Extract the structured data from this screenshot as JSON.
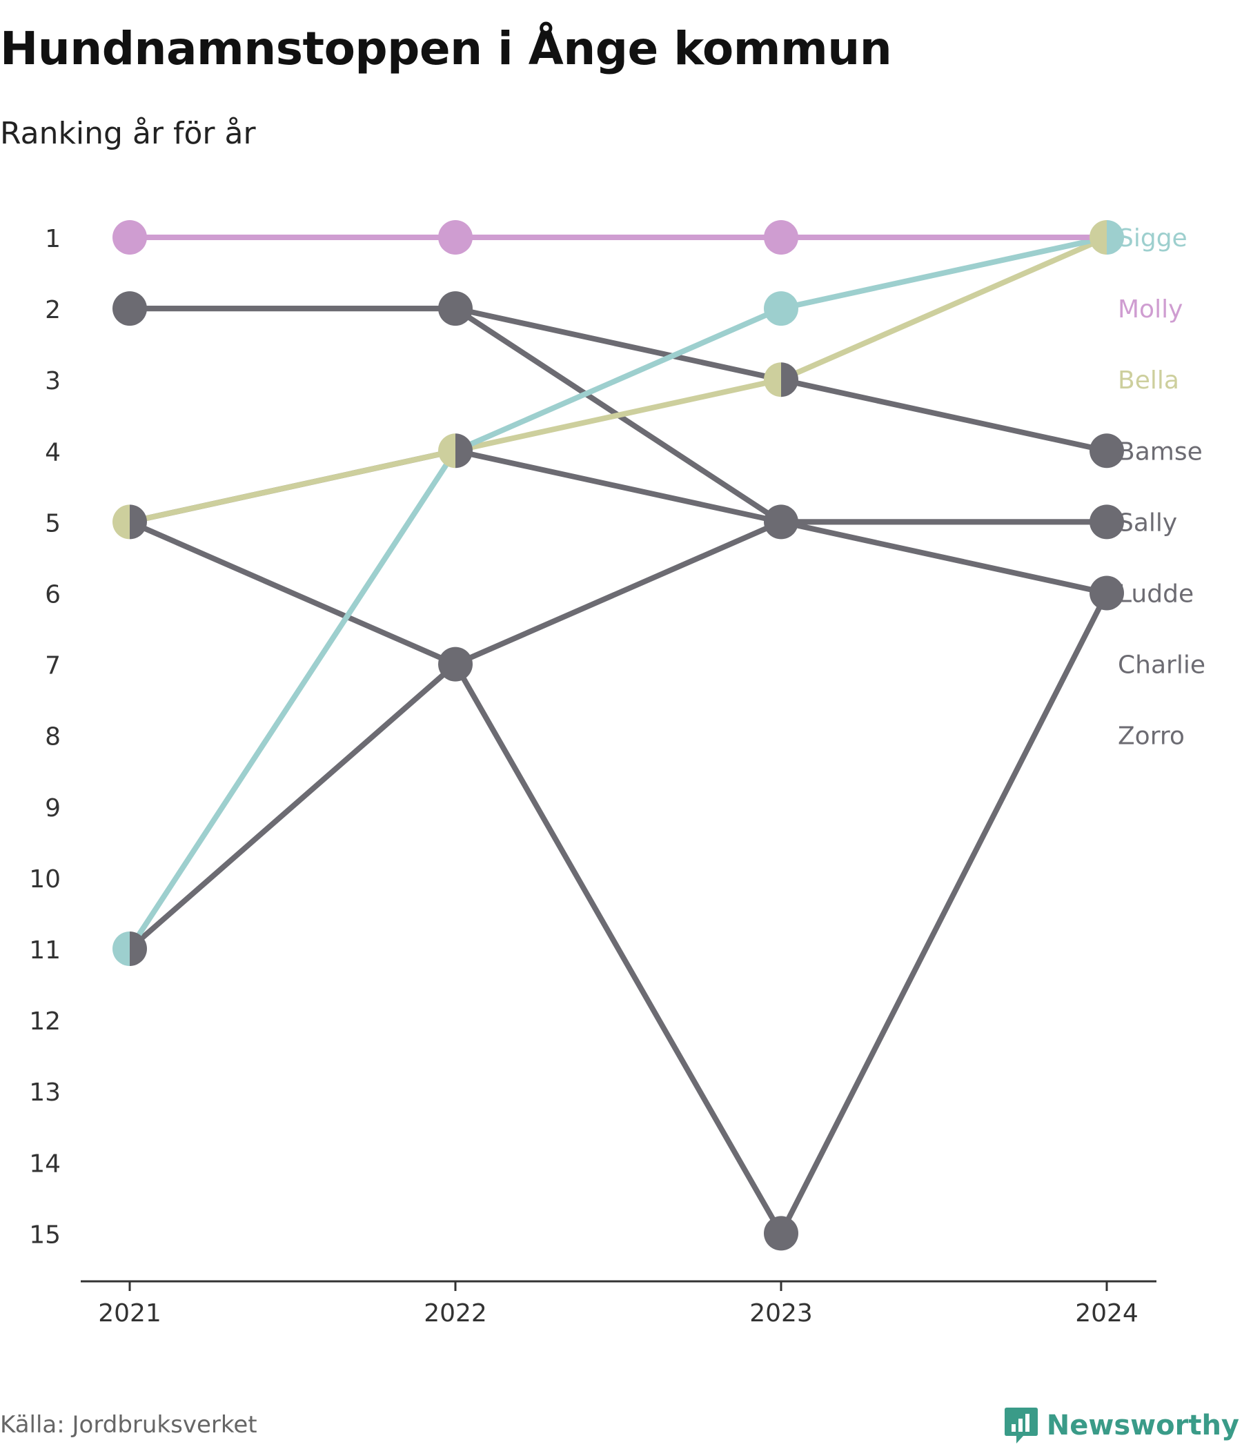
{
  "title": "Hundnamnstoppen i Ånge kommun",
  "subtitle": "Ranking år för år",
  "source": "Källa: Jordbruksverket",
  "brand": {
    "name": "Newsworthy",
    "color": "#3a9b88",
    "icon": "newsworthy-logo-icon"
  },
  "chart_data": {
    "type": "line",
    "variant": "bump",
    "title": "Hundnamnstoppen i Ånge kommun",
    "subtitle": "Ranking år för år",
    "x": [
      "2021",
      "2022",
      "2023",
      "2024"
    ],
    "y_ticks": [
      "1",
      "2",
      "3",
      "4",
      "5",
      "6",
      "7",
      "8",
      "9",
      "10",
      "11",
      "12",
      "13",
      "14",
      "15"
    ],
    "ylim": [
      1,
      15
    ],
    "y_inverted": true,
    "grid": false,
    "legend": "end-labels-right",
    "series": [
      {
        "name": "Zorro",
        "values": [
          5,
          7,
          15,
          6
        ],
        "color": "#6c6b72"
      },
      {
        "name": "Charlie",
        "values": [
          11,
          7,
          5,
          5
        ],
        "color": "#6c6b72"
      },
      {
        "name": "Ludde",
        "values": [
          2,
          2,
          5,
          6
        ],
        "color": "#6c6b72"
      },
      {
        "name": "Sally",
        "values": [
          5,
          4,
          5,
          5
        ],
        "color": "#6c6b72"
      },
      {
        "name": "Bamse",
        "values": [
          2,
          2,
          3,
          4
        ],
        "color": "#6c6b72"
      },
      {
        "name": "Bella",
        "values": [
          5,
          4,
          3,
          1
        ],
        "color": "#cdcf9d"
      },
      {
        "name": "Sigge",
        "values": [
          11,
          4,
          2,
          1
        ],
        "color": "#9dcfce"
      },
      {
        "name": "Molly",
        "values": [
          1,
          1,
          1,
          1
        ],
        "color": "#cf9dd1"
      }
    ],
    "labels": [
      {
        "name": "Sigge",
        "rank": 1
      },
      {
        "name": "Molly",
        "rank": 2
      },
      {
        "name": "Bella",
        "rank": 3
      },
      {
        "name": "Bamse",
        "rank": 4
      },
      {
        "name": "Sally",
        "rank": 5
      },
      {
        "name": "Ludde",
        "rank": 6
      },
      {
        "name": "Charlie",
        "rank": 7
      },
      {
        "name": "Zorro",
        "rank": 8
      }
    ]
  }
}
